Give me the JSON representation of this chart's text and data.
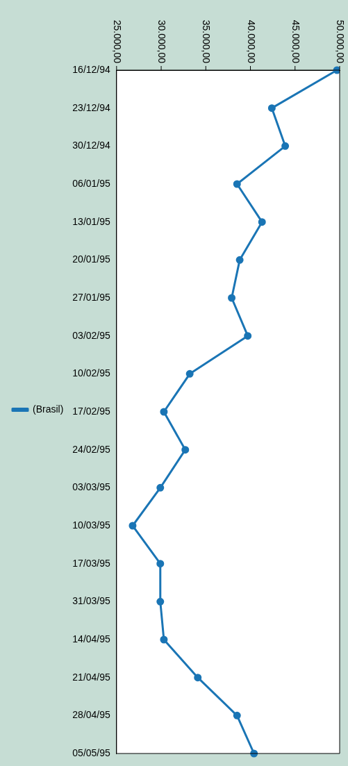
{
  "chart_data": {
    "type": "line",
    "orientation": "horizontal",
    "categories": [
      "16/12/94",
      "23/12/94",
      "30/12/94",
      "06/01/95",
      "13/01/95",
      "20/01/95",
      "27/01/95",
      "03/02/95",
      "10/02/95",
      "17/02/95",
      "24/02/95",
      "03/03/95",
      "10/03/95",
      "17/03/95",
      "31/03/95",
      "14/04/95",
      "21/04/95",
      "28/04/95",
      "05/05/95"
    ],
    "series": [
      {
        "name": "(Brasil)",
        "color": "#1a75b5",
        "values": [
          49700,
          42400,
          43900,
          38500,
          41300,
          38800,
          37900,
          39700,
          33200,
          30300,
          32700,
          29900,
          26800,
          29900,
          29900,
          30300,
          34100,
          38500,
          40400
        ]
      }
    ],
    "xlim": [
      25000,
      50000
    ],
    "xticks": [
      {
        "value": 25000,
        "label": "25.000,00"
      },
      {
        "value": 30000,
        "label": "30.000,00"
      },
      {
        "value": 35000,
        "label": "35.000,00"
      },
      {
        "value": 40000,
        "label": "40.000,00"
      },
      {
        "value": 45000,
        "label": "45.000,00"
      },
      {
        "value": 50000,
        "label": "50.000,00"
      }
    ],
    "marker": "circle",
    "legend": "left",
    "grid": false
  }
}
